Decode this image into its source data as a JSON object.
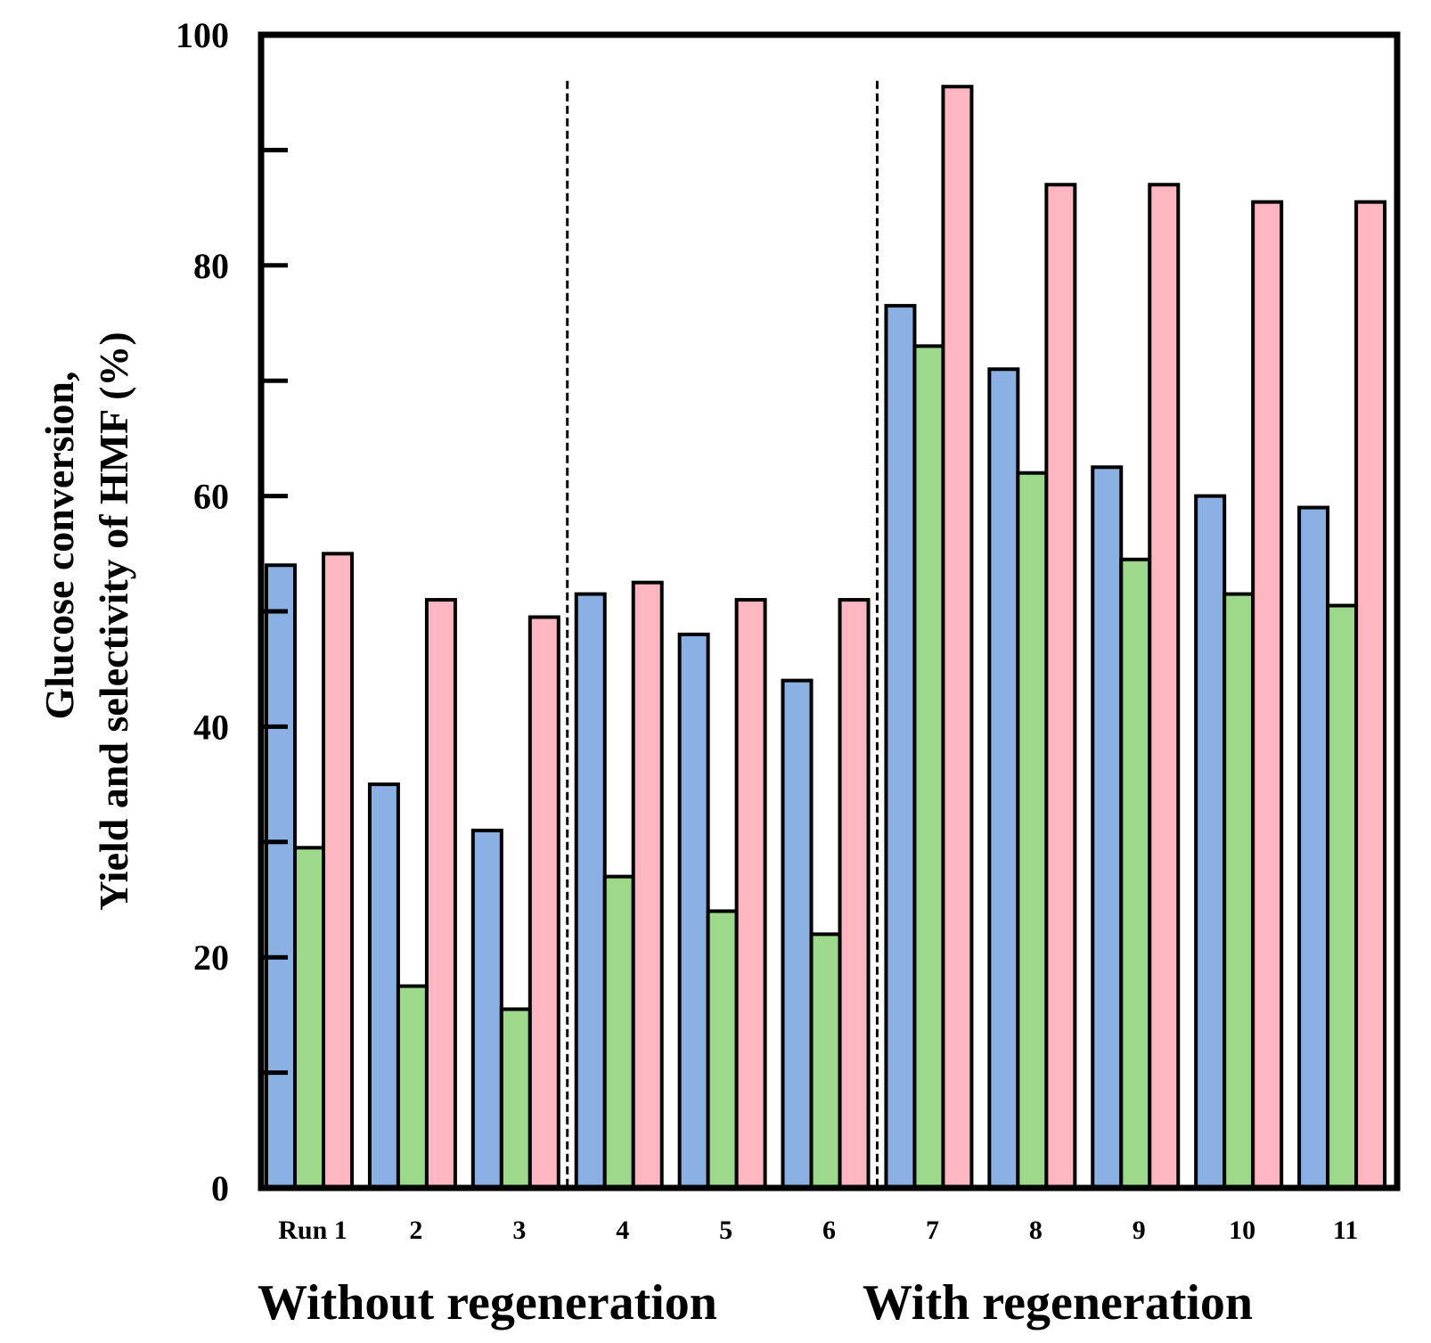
{
  "chart_data": {
    "type": "bar",
    "title": "",
    "xlabel": "",
    "ylabel_lines": [
      "Glucose conversion,",
      "Yield and selectivity of HMF (%)"
    ],
    "ylim": [
      0,
      100
    ],
    "yticks": [
      0,
      20,
      40,
      60,
      80,
      100
    ],
    "categories": [
      "Run 1",
      "2",
      "3",
      "4",
      "5",
      "6",
      "7",
      "8",
      "9",
      "10",
      "11"
    ],
    "series": [
      {
        "name": "Glucose conversion",
        "color": "#8bb0e4",
        "values": [
          54,
          35,
          31,
          51.5,
          48,
          44,
          76.5,
          71,
          62.5,
          60,
          59
        ]
      },
      {
        "name": "HMF yield",
        "color": "#9cd98b",
        "values": [
          29.5,
          17.5,
          15.5,
          27,
          24,
          22,
          73,
          62,
          54.5,
          51.5,
          50.5
        ]
      },
      {
        "name": "HMF selectivity",
        "color": "#ffb6c1",
        "values": [
          55,
          51,
          49.5,
          52.5,
          51,
          51,
          95.5,
          87,
          87,
          85.5,
          85.5
        ]
      }
    ],
    "separators_after_category": [
      "3",
      "6"
    ],
    "group_labels": [
      "Without regeneration",
      "With regeneration"
    ],
    "grid": false,
    "legend": "none"
  }
}
